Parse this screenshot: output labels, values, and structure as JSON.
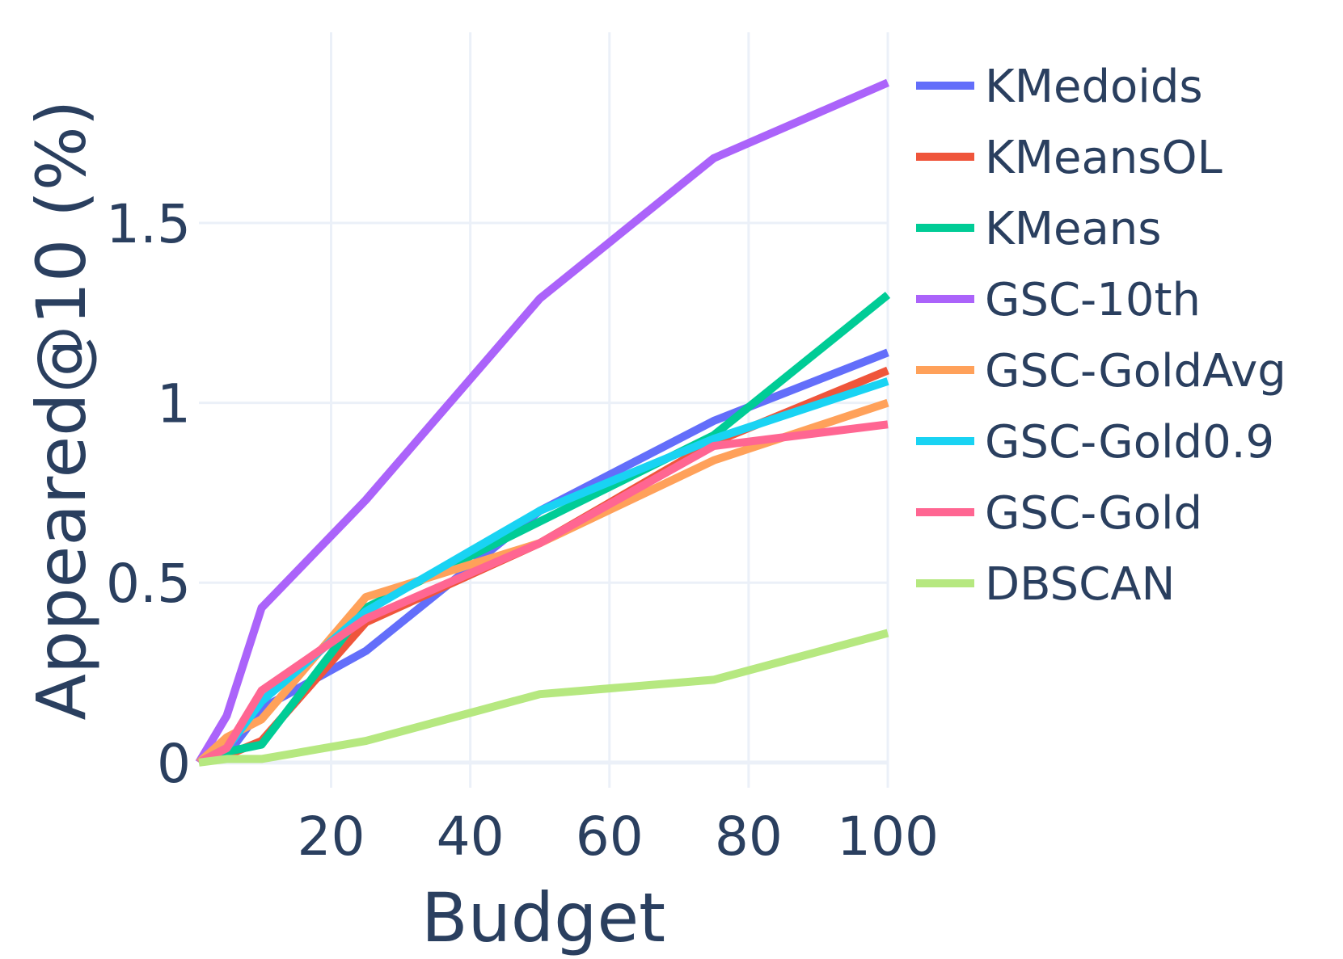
{
  "chart_data": {
    "type": "line",
    "title": "",
    "xlabel": "Budget",
    "ylabel": "Appeared@10 (%)",
    "xlim": [
      1,
      100
    ],
    "ylim": [
      -0.07,
      2.03
    ],
    "xticks": [
      20,
      40,
      60,
      80,
      100
    ],
    "xtick_labels": [
      "20",
      "40",
      "60",
      "80",
      "100"
    ],
    "yticks": [
      0,
      0.5,
      1,
      1.5
    ],
    "ytick_labels": [
      "0",
      "0.5",
      "1",
      "1.5"
    ],
    "grid": true,
    "legend_position": "right",
    "x": [
      1,
      5,
      10,
      25,
      50,
      75,
      100
    ],
    "series": [
      {
        "name": "KMedoids",
        "color": "#636efa",
        "values": [
          0,
          0.02,
          0.15,
          0.31,
          0.7,
          0.95,
          1.14
        ]
      },
      {
        "name": "KMeansOL",
        "color": "#ef553b",
        "values": [
          0,
          0.02,
          0.06,
          0.39,
          0.61,
          0.89,
          1.09
        ]
      },
      {
        "name": "KMeans",
        "color": "#00cc96",
        "values": [
          0,
          0.03,
          0.05,
          0.43,
          0.67,
          0.91,
          1.3
        ]
      },
      {
        "name": "GSC-10th",
        "color": "#ab63fa",
        "values": [
          0,
          0.13,
          0.43,
          0.73,
          1.29,
          1.68,
          1.89
        ]
      },
      {
        "name": "GSC-GoldAvg",
        "color": "#ffa15a",
        "values": [
          0,
          0.07,
          0.12,
          0.46,
          0.61,
          0.84,
          1.0
        ]
      },
      {
        "name": "GSC-Gold0.9",
        "color": "#19d3f3",
        "values": [
          0,
          0.04,
          0.17,
          0.42,
          0.7,
          0.9,
          1.06
        ]
      },
      {
        "name": "GSC-Gold",
        "color": "#ff6692",
        "values": [
          0,
          0.04,
          0.2,
          0.4,
          0.61,
          0.88,
          0.94
        ]
      },
      {
        "name": "DBSCAN",
        "color": "#b6e880",
        "values": [
          0,
          0.01,
          0.01,
          0.06,
          0.19,
          0.23,
          0.36
        ]
      }
    ]
  }
}
